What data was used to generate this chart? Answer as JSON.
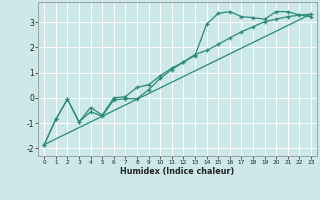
{
  "xlabel": "Humidex (Indice chaleur)",
  "background_color": "#cce8e8",
  "grid_color": "#ffffff",
  "line_color": "#2a8a7a",
  "xlim": [
    -0.5,
    23.5
  ],
  "ylim": [
    -2.3,
    3.8
  ],
  "yticks": [
    -2,
    -1,
    0,
    1,
    2,
    3
  ],
  "xticks": [
    0,
    1,
    2,
    3,
    4,
    5,
    6,
    7,
    8,
    9,
    10,
    11,
    12,
    13,
    14,
    15,
    16,
    17,
    18,
    19,
    20,
    21,
    22,
    23
  ],
  "line1_x": [
    0,
    1,
    2,
    3,
    4,
    5,
    6,
    7,
    8,
    9,
    10,
    11,
    12,
    13,
    14,
    15,
    16,
    17,
    18,
    19,
    20,
    21,
    22,
    23
  ],
  "line1_y": [
    -1.85,
    -0.85,
    -0.05,
    -0.95,
    -0.55,
    -0.72,
    -0.08,
    -0.03,
    -0.03,
    0.32,
    0.78,
    1.12,
    1.42,
    1.68,
    2.92,
    3.35,
    3.42,
    3.22,
    3.18,
    3.12,
    3.42,
    3.42,
    3.28,
    3.22
  ],
  "line2_x": [
    0,
    1,
    2,
    3,
    4,
    5,
    6,
    7,
    8,
    9,
    10,
    11,
    12,
    13,
    14,
    15,
    16,
    17,
    18,
    19,
    20,
    21,
    22,
    23
  ],
  "line2_y": [
    -1.85,
    -0.85,
    -0.05,
    -0.95,
    -0.38,
    -0.68,
    0.0,
    0.05,
    0.42,
    0.52,
    0.88,
    1.18,
    1.42,
    1.72,
    1.88,
    2.12,
    2.38,
    2.62,
    2.82,
    3.02,
    3.12,
    3.22,
    3.28,
    3.32
  ],
  "line3_x": [
    0,
    23
  ],
  "line3_y": [
    -1.85,
    3.32
  ]
}
